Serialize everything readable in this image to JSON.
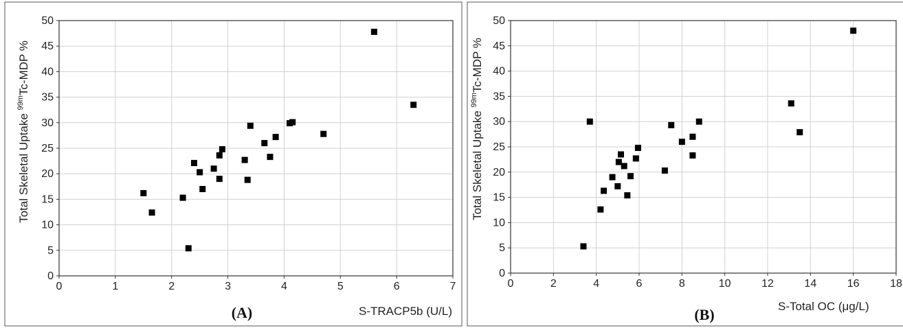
{
  "chart_data": [
    {
      "type": "scatter",
      "panel_label": "(A)",
      "xlabel": "S-TRACP5b (U/L)",
      "ylabel_prefix": "Total Skeletal Uptake ",
      "ylabel_sup": "99m",
      "ylabel_suffix": "Tc-MDP %",
      "xlim": [
        0,
        7
      ],
      "ylim": [
        0,
        50
      ],
      "xticks": [
        0,
        1,
        2,
        3,
        4,
        5,
        6,
        7
      ],
      "yticks": [
        0,
        5,
        10,
        15,
        20,
        25,
        30,
        35,
        40,
        45,
        50
      ],
      "grid": true,
      "marker_color": "#000000",
      "points": [
        {
          "x": 1.5,
          "y": 16.2
        },
        {
          "x": 1.65,
          "y": 12.4
        },
        {
          "x": 2.2,
          "y": 15.3
        },
        {
          "x": 2.3,
          "y": 5.4
        },
        {
          "x": 2.4,
          "y": 22.1
        },
        {
          "x": 2.5,
          "y": 20.3
        },
        {
          "x": 2.55,
          "y": 17.0
        },
        {
          "x": 2.75,
          "y": 21.0
        },
        {
          "x": 2.85,
          "y": 23.6
        },
        {
          "x": 2.85,
          "y": 19.0
        },
        {
          "x": 2.9,
          "y": 24.8
        },
        {
          "x": 3.3,
          "y": 22.7
        },
        {
          "x": 3.35,
          "y": 18.8
        },
        {
          "x": 3.4,
          "y": 29.4
        },
        {
          "x": 3.65,
          "y": 26.0
        },
        {
          "x": 3.75,
          "y": 23.3
        },
        {
          "x": 3.85,
          "y": 27.2
        },
        {
          "x": 4.1,
          "y": 29.9
        },
        {
          "x": 4.15,
          "y": 30.1
        },
        {
          "x": 4.7,
          "y": 27.8
        },
        {
          "x": 5.6,
          "y": 47.8
        },
        {
          "x": 6.3,
          "y": 33.5
        }
      ]
    },
    {
      "type": "scatter",
      "panel_label": "(B)",
      "xlabel": "S-Total OC (μg/L)",
      "ylabel_prefix": "Total Skeletal Uptake ",
      "ylabel_sup": "99m",
      "ylabel_suffix": "Tc-MDP %",
      "xlim": [
        0,
        18
      ],
      "ylim": [
        0,
        50
      ],
      "xticks": [
        0,
        2,
        4,
        6,
        8,
        10,
        12,
        14,
        16,
        18
      ],
      "yticks": [
        0,
        5,
        10,
        15,
        20,
        25,
        30,
        35,
        40,
        45,
        50
      ],
      "grid": true,
      "marker_color": "#000000",
      "points": [
        {
          "x": 3.4,
          "y": 5.3
        },
        {
          "x": 3.7,
          "y": 30.0
        },
        {
          "x": 4.2,
          "y": 12.6
        },
        {
          "x": 4.35,
          "y": 16.3
        },
        {
          "x": 4.75,
          "y": 19.0
        },
        {
          "x": 5.0,
          "y": 17.2
        },
        {
          "x": 5.05,
          "y": 22.0
        },
        {
          "x": 5.15,
          "y": 23.5
        },
        {
          "x": 5.3,
          "y": 21.2
        },
        {
          "x": 5.45,
          "y": 15.4
        },
        {
          "x": 5.6,
          "y": 19.2
        },
        {
          "x": 5.85,
          "y": 22.7
        },
        {
          "x": 5.95,
          "y": 24.8
        },
        {
          "x": 7.2,
          "y": 20.3
        },
        {
          "x": 7.5,
          "y": 29.3
        },
        {
          "x": 8.0,
          "y": 26.0
        },
        {
          "x": 8.5,
          "y": 27.0
        },
        {
          "x": 8.5,
          "y": 23.3
        },
        {
          "x": 8.8,
          "y": 30.0
        },
        {
          "x": 13.1,
          "y": 33.6
        },
        {
          "x": 13.5,
          "y": 27.9
        },
        {
          "x": 16.0,
          "y": 48.0
        }
      ]
    }
  ]
}
